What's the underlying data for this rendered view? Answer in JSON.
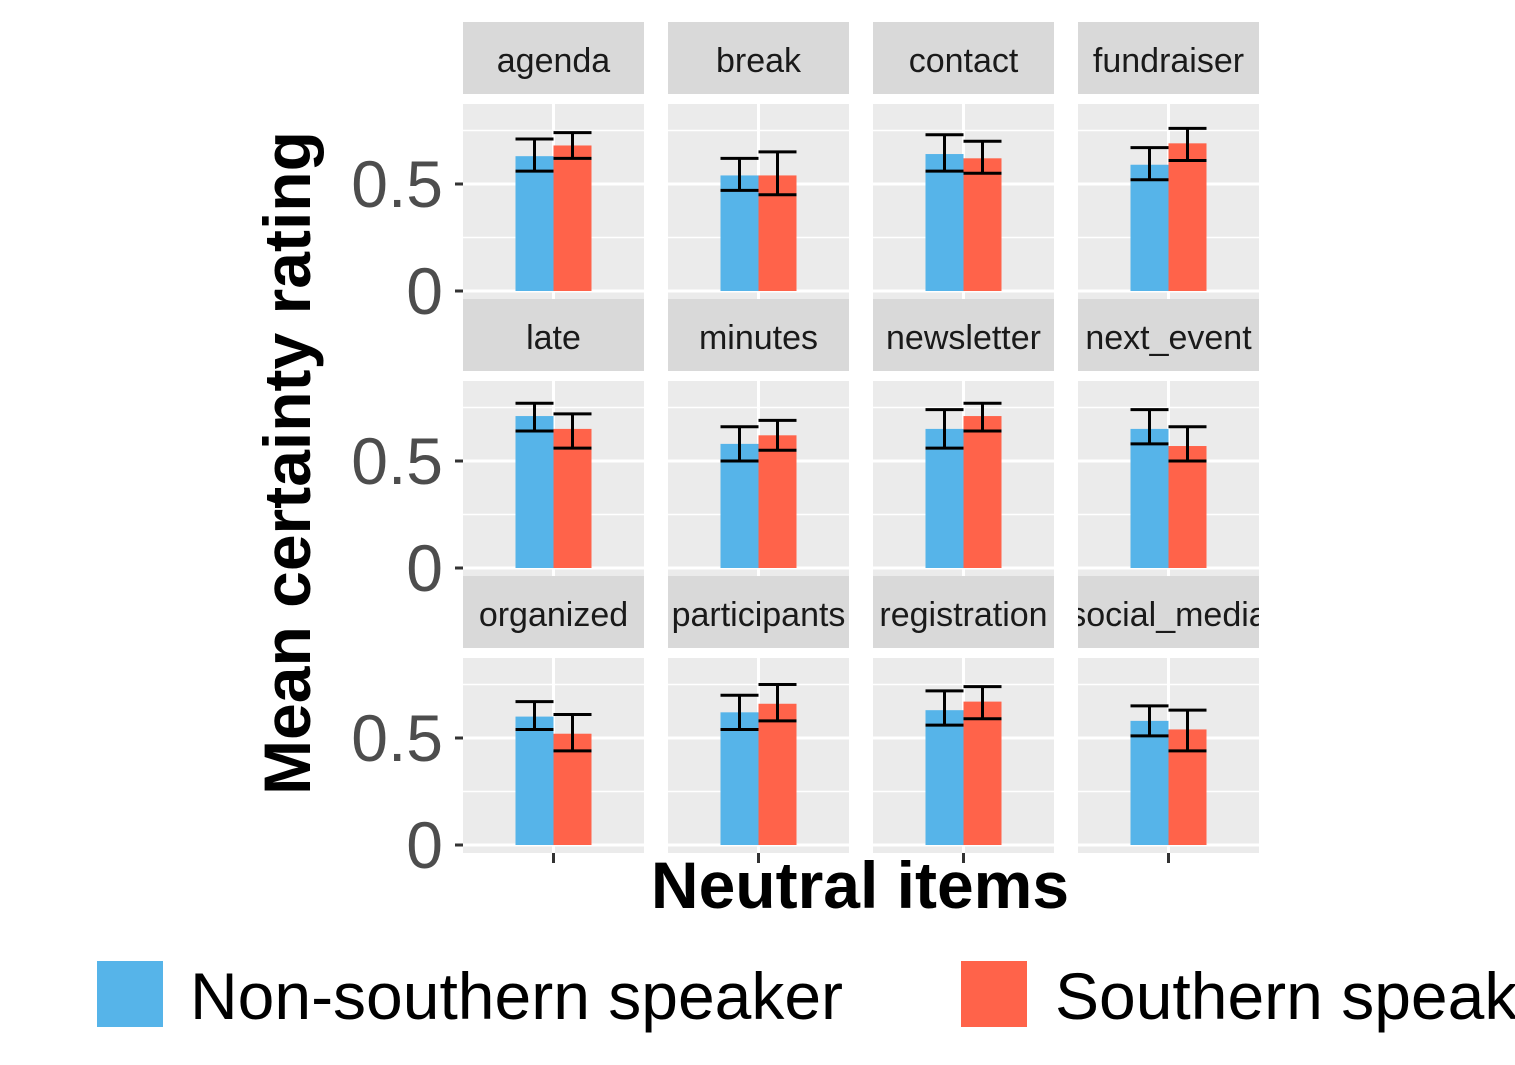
{
  "chart_data": {
    "type": "bar",
    "xlabel": "Neutral items",
    "ylabel": "Mean certainty rating",
    "ylim": [
      0,
      1
    ],
    "y_ticks": [
      {
        "value": 0,
        "label": "0"
      },
      {
        "value": 0.5,
        "label": "0.5"
      }
    ],
    "grid": true,
    "layout": {
      "cols": 4,
      "rows": 3
    },
    "legend_position": "bottom",
    "colors": {
      "Non-southern speaker": "#56B4E9",
      "Southern speaker": "#FF634A",
      "panel_bg": "#EBEBEB",
      "strip_bg": "#D9D9D9",
      "grid": "#FFFFFF"
    },
    "series": [
      {
        "name": "Non-southern speaker"
      },
      {
        "name": "Southern speaker"
      }
    ],
    "facets": [
      {
        "label": "agenda",
        "values": [
          0.63,
          0.68
        ],
        "errors": [
          [
            0.56,
            0.71
          ],
          [
            0.62,
            0.74
          ]
        ]
      },
      {
        "label": "break",
        "values": [
          0.54,
          0.54
        ],
        "errors": [
          [
            0.47,
            0.62
          ],
          [
            0.45,
            0.65
          ]
        ]
      },
      {
        "label": "contact",
        "values": [
          0.64,
          0.62
        ],
        "errors": [
          [
            0.56,
            0.73
          ],
          [
            0.55,
            0.7
          ]
        ]
      },
      {
        "label": "fundraiser",
        "values": [
          0.59,
          0.69
        ],
        "errors": [
          [
            0.52,
            0.67
          ],
          [
            0.61,
            0.76
          ]
        ]
      },
      {
        "label": "late",
        "values": [
          0.71,
          0.65
        ],
        "errors": [
          [
            0.64,
            0.77
          ],
          [
            0.56,
            0.72
          ]
        ]
      },
      {
        "label": "minutes",
        "values": [
          0.58,
          0.62
        ],
        "errors": [
          [
            0.5,
            0.66
          ],
          [
            0.55,
            0.69
          ]
        ]
      },
      {
        "label": "newsletter",
        "values": [
          0.65,
          0.71
        ],
        "errors": [
          [
            0.56,
            0.74
          ],
          [
            0.64,
            0.77
          ]
        ]
      },
      {
        "label": "next_event",
        "values": [
          0.65,
          0.57
        ],
        "errors": [
          [
            0.58,
            0.74
          ],
          [
            0.5,
            0.66
          ]
        ]
      },
      {
        "label": "organized",
        "values": [
          0.6,
          0.52
        ],
        "errors": [
          [
            0.54,
            0.67
          ],
          [
            0.44,
            0.61
          ]
        ]
      },
      {
        "label": "participants",
        "values": [
          0.62,
          0.66
        ],
        "errors": [
          [
            0.54,
            0.7
          ],
          [
            0.58,
            0.75
          ]
        ]
      },
      {
        "label": "registration",
        "values": [
          0.63,
          0.67
        ],
        "errors": [
          [
            0.56,
            0.72
          ],
          [
            0.59,
            0.74
          ]
        ]
      },
      {
        "label": "social_media",
        "values": [
          0.58,
          0.54
        ],
        "errors": [
          [
            0.51,
            0.65
          ],
          [
            0.44,
            0.63
          ]
        ]
      }
    ]
  }
}
